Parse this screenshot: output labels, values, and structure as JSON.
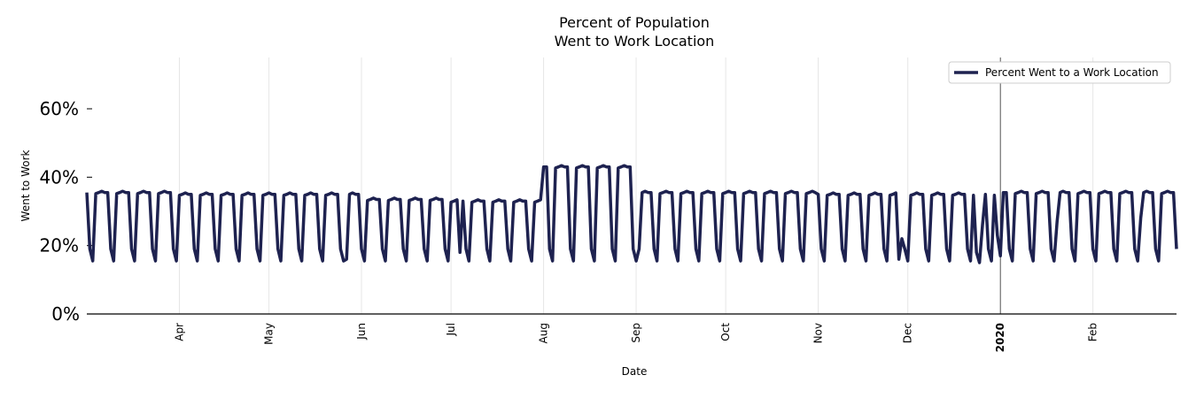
{
  "chart_data": {
    "type": "line",
    "title": [
      "Percent of Population",
      "Went to Work Location"
    ],
    "xlabel": "Date",
    "ylabel": "Went to Work",
    "ylim": [
      0,
      75
    ],
    "yticks": [
      0,
      20,
      40,
      60
    ],
    "ytick_labels": [
      "0%",
      "20%",
      "40%",
      "60%"
    ],
    "grid": "vertical at month ticks",
    "x_start": "2019-03-01",
    "x_end": "2020-02-29",
    "x_ticks": [
      {
        "label": "Apr",
        "date": "2019-04-01",
        "bold": false
      },
      {
        "label": "May",
        "date": "2019-05-01",
        "bold": false
      },
      {
        "label": "Jun",
        "date": "2019-06-01",
        "bold": false
      },
      {
        "label": "Jul",
        "date": "2019-07-01",
        "bold": false
      },
      {
        "label": "Aug",
        "date": "2019-08-01",
        "bold": false
      },
      {
        "label": "Sep",
        "date": "2019-09-01",
        "bold": false
      },
      {
        "label": "Oct",
        "date": "2019-10-01",
        "bold": false
      },
      {
        "label": "Nov",
        "date": "2019-11-01",
        "bold": false
      },
      {
        "label": "Dec",
        "date": "2019-12-01",
        "bold": false
      },
      {
        "label": "2020",
        "date": "2020-01-01",
        "bold": true
      },
      {
        "label": "Feb",
        "date": "2020-02-01",
        "bold": false
      }
    ],
    "reference_line_date": "2020-01-01",
    "legend_position": "top-right",
    "series": [
      {
        "name": "Percent Went to a Work Location",
        "color": "#1e2250",
        "weekday_baseline_by_month": {
          "Mar": 35.5,
          "Apr": 35,
          "May": 35,
          "Jun": 33.5,
          "Jul": 33,
          "Aug": 43,
          "Sep": 35.5,
          "Oct": 35.5,
          "Nov": 35,
          "Dec": 35,
          "Jan": 35.5,
          "Feb": 35.5
        },
        "weekend_value_approx": 16,
        "notes": "Weekly cycle: weekdays near baseline, Sat/Sun dip to ~15-20%. Holiday dips around Jul 4, Thanksgiving, Christmas/New Year."
      }
    ]
  }
}
